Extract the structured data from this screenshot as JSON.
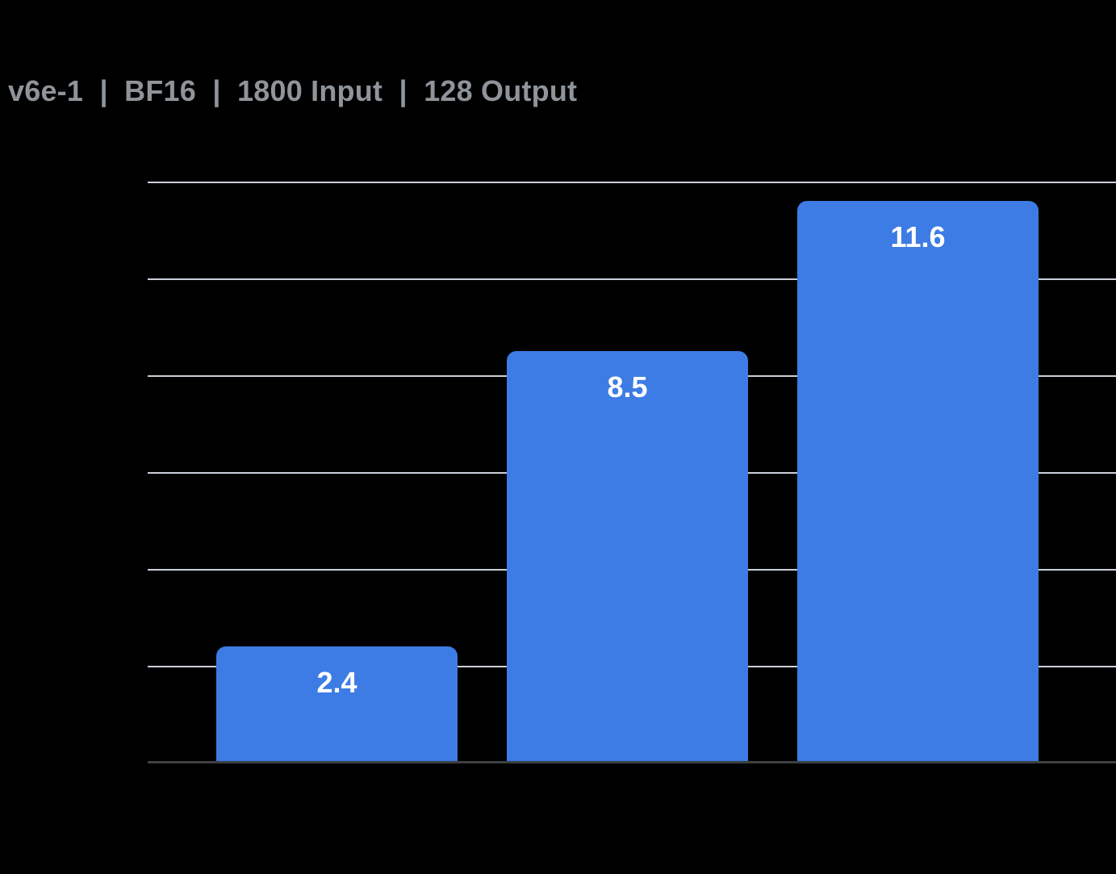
{
  "header": {
    "title": "v6e-1  |  BF16  |  1800 Input  |  128 Output"
  },
  "chart_data": {
    "type": "bar",
    "title": "v6e-1 | BF16 | 1800 Input | 128 Output",
    "values": [
      2.4,
      8.5,
      11.6
    ],
    "bar_labels": [
      "2.4",
      "8.5",
      "11.6"
    ],
    "xlabel": "",
    "ylabel": "",
    "ylim": [
      0,
      12
    ],
    "gridline_step": 2,
    "grid": "horizontal",
    "legend": "none",
    "colors": {
      "background": "#000000",
      "bar": "#3D7CE4",
      "gridline": "#CBD0D9",
      "baseline": "#3C4043",
      "title_text": "#8E9499",
      "bar_label_text": "#FFFFFF"
    }
  }
}
